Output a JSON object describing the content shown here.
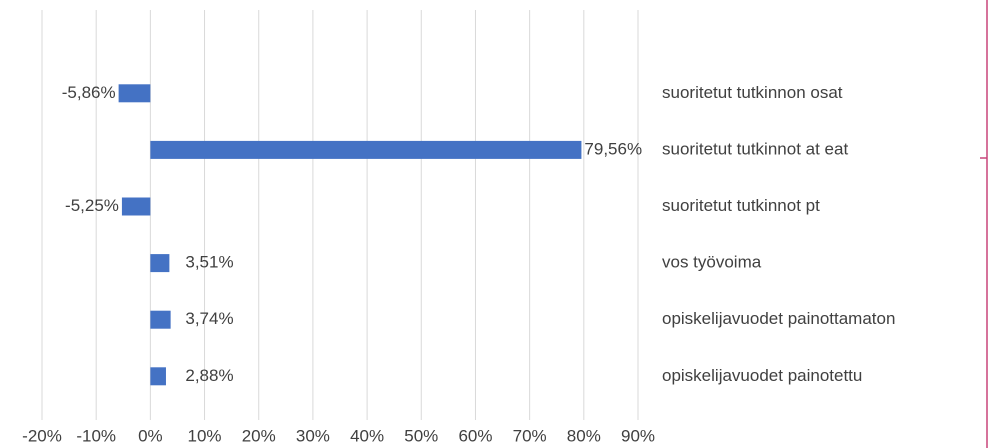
{
  "chart_data": {
    "type": "barh",
    "categories": [
      "suoritetut tutkinnon osat",
      "suoritetut tutkinnot at eat",
      "suoritetut tutkinnot pt",
      "vos työvoima",
      "opiskelijavuodet painottamaton",
      "opiskelijavuodet painotettu"
    ],
    "values": [
      -5.86,
      79.56,
      -5.25,
      3.51,
      3.74,
      2.88
    ],
    "value_labels": [
      "-5,86%",
      "79,56%",
      "-5,25%",
      "3,51%",
      "3,74%",
      "2,88%"
    ],
    "color": "#4472c4",
    "xlim": [
      -20,
      90
    ],
    "xticks": [
      {
        "value": -20,
        "label": "-20%"
      },
      {
        "value": -10,
        "label": "-10%"
      },
      {
        "value": 0,
        "label": "0%"
      },
      {
        "value": 10,
        "label": "10%"
      },
      {
        "value": 20,
        "label": "20%"
      },
      {
        "value": 30,
        "label": "30%"
      },
      {
        "value": 40,
        "label": "40%"
      },
      {
        "value": 50,
        "label": "50%"
      },
      {
        "value": 60,
        "label": "60%"
      },
      {
        "value": 70,
        "label": "70%"
      },
      {
        "value": 80,
        "label": "80%"
      },
      {
        "value": 90,
        "label": "90%"
      }
    ],
    "grid": true
  }
}
